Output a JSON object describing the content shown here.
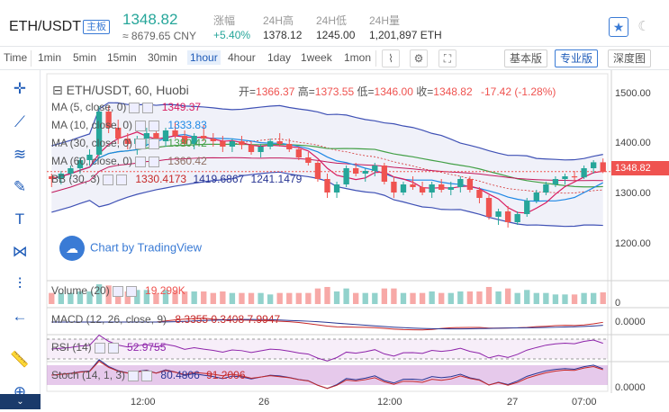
{
  "header": {
    "pair": "ETH/USDT",
    "tag": "主板",
    "price": "1348.82",
    "price_cny": "≈ 8679.65 CNY",
    "stats": [
      {
        "label": "涨幅",
        "value": "+5.40%"
      },
      {
        "label": "24H高",
        "value": "1378.12"
      },
      {
        "label": "24H低",
        "value": "1245.00"
      },
      {
        "label": "24H量",
        "value": "1,201,897 ETH"
      }
    ]
  },
  "toolbar": {
    "timeframes": [
      "Time",
      "1min",
      "5min",
      "15min",
      "30min",
      "1hour",
      "4hour",
      "1day",
      "1week",
      "1mon"
    ],
    "active_timeframe": "1hour",
    "views": [
      "基本版",
      "专业版",
      "深度图"
    ],
    "active_view": "专业版"
  },
  "left_tools": [
    "crosshair-icon",
    "trendline-icon",
    "fib-icon",
    "brush-icon",
    "text-icon",
    "pattern-icon",
    "measure-icon",
    "back-arrow-icon",
    "ruler-icon",
    "zoom-icon"
  ],
  "main": {
    "title": "ETH/USDT, 60, Huobi",
    "ohlc": {
      "open_label": "开=",
      "open": "1366.37",
      "high_label": "高=",
      "high": "1373.55",
      "low_label": "低=",
      "low": "1346.00",
      "close_label": "收=",
      "close": "1348.82",
      "change": "-17.42 (-1.28%)"
    },
    "indicators": [
      {
        "label": "MA (5, close, 0)",
        "value": "1349.37",
        "color": "#d81b60"
      },
      {
        "label": "MA (10, close, 0)",
        "value": "1333.83",
        "color": "#1e88e5"
      },
      {
        "label": "MA (30, close, 0)",
        "value": "1380.42",
        "color": "#43a047"
      },
      {
        "label": "MA (60, close, 0)",
        "value": "1360.42",
        "color": "#8d6e63"
      },
      {
        "label": "BB (30, 3)",
        "value": "1330.4173",
        "value2": "1419.6867",
        "value3": "1241.1479",
        "color": "#3949ab"
      }
    ],
    "current_price_label": "1348.82",
    "watermark": "Chart by TradingView",
    "y_ticks": [
      "1500.00",
      "1400.00",
      "1300.00",
      "1200.00"
    ]
  },
  "panels": {
    "volume": {
      "label": "Volume (20)",
      "value": "19.299K",
      "y_tick": "0"
    },
    "macd": {
      "label": "MACD (12, 26, close, 9)",
      "values": "8.3355  0.3408  7.9947",
      "y_tick": "0.0000"
    },
    "rsi": {
      "label": "RSI (14)",
      "value": "52.9755"
    },
    "stoch": {
      "label": "Stoch (14, 1, 3)",
      "value1": "80.4806",
      "value2": "91.2006",
      "y_tick": "0.0000"
    }
  },
  "x_ticks": [
    "12:00",
    "26",
    "12:00",
    "27",
    "07:00"
  ],
  "chart_data": {
    "type": "candlestick",
    "candles": [
      [
        1340,
        1345,
        1320,
        1335
      ],
      [
        1335,
        1350,
        1325,
        1345
      ],
      [
        1345,
        1360,
        1335,
        1355
      ],
      [
        1355,
        1375,
        1345,
        1370
      ],
      [
        1370,
        1390,
        1360,
        1380
      ],
      [
        1380,
        1470,
        1375,
        1460
      ],
      [
        1460,
        1470,
        1420,
        1430
      ],
      [
        1430,
        1445,
        1400,
        1410
      ],
      [
        1410,
        1420,
        1390,
        1400
      ],
      [
        1400,
        1415,
        1380,
        1410
      ],
      [
        1410,
        1430,
        1395,
        1420
      ],
      [
        1420,
        1425,
        1400,
        1405
      ],
      [
        1405,
        1430,
        1395,
        1425
      ],
      [
        1425,
        1440,
        1410,
        1415
      ],
      [
        1415,
        1425,
        1395,
        1400
      ],
      [
        1400,
        1420,
        1390,
        1415
      ],
      [
        1415,
        1435,
        1405,
        1410
      ],
      [
        1410,
        1420,
        1395,
        1405
      ],
      [
        1405,
        1415,
        1385,
        1395
      ],
      [
        1395,
        1410,
        1385,
        1405
      ],
      [
        1405,
        1415,
        1390,
        1398
      ],
      [
        1398,
        1405,
        1380,
        1385
      ],
      [
        1385,
        1400,
        1375,
        1395
      ],
      [
        1395,
        1410,
        1390,
        1405
      ],
      [
        1405,
        1420,
        1395,
        1400
      ],
      [
        1400,
        1410,
        1385,
        1390
      ],
      [
        1390,
        1395,
        1370,
        1375
      ],
      [
        1375,
        1385,
        1360,
        1365
      ],
      [
        1365,
        1370,
        1330,
        1335
      ],
      [
        1335,
        1345,
        1300,
        1310
      ],
      [
        1310,
        1330,
        1300,
        1325
      ],
      [
        1325,
        1360,
        1320,
        1355
      ],
      [
        1355,
        1365,
        1340,
        1345
      ],
      [
        1345,
        1355,
        1330,
        1350
      ],
      [
        1350,
        1365,
        1340,
        1360
      ],
      [
        1360,
        1365,
        1325,
        1330
      ],
      [
        1330,
        1340,
        1300,
        1310
      ],
      [
        1310,
        1330,
        1305,
        1325
      ],
      [
        1325,
        1340,
        1315,
        1320
      ],
      [
        1320,
        1330,
        1305,
        1310
      ],
      [
        1310,
        1330,
        1300,
        1325
      ],
      [
        1325,
        1335,
        1310,
        1315
      ],
      [
        1315,
        1330,
        1305,
        1320
      ],
      [
        1320,
        1340,
        1310,
        1335
      ],
      [
        1335,
        1340,
        1310,
        1315
      ],
      [
        1315,
        1320,
        1290,
        1300
      ],
      [
        1300,
        1305,
        1260,
        1265
      ],
      [
        1265,
        1280,
        1250,
        1275
      ],
      [
        1275,
        1285,
        1245,
        1255
      ],
      [
        1255,
        1275,
        1250,
        1270
      ],
      [
        1270,
        1300,
        1265,
        1295
      ],
      [
        1295,
        1315,
        1290,
        1310
      ],
      [
        1310,
        1330,
        1305,
        1325
      ],
      [
        1325,
        1340,
        1320,
        1335
      ],
      [
        1335,
        1345,
        1325,
        1340
      ],
      [
        1340,
        1350,
        1330,
        1338
      ],
      [
        1338,
        1360,
        1335,
        1355
      ],
      [
        1355,
        1370,
        1345,
        1366
      ],
      [
        1366,
        1373,
        1346,
        1348
      ]
    ],
    "ylim": [
      1150,
      1530
    ],
    "current_price": 1348.82
  }
}
